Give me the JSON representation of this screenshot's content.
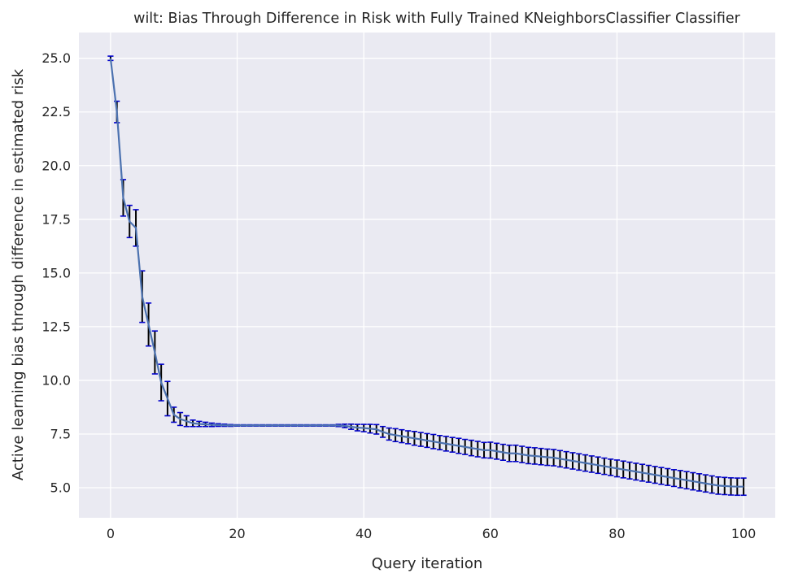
{
  "chart_data": {
    "type": "line",
    "title": "wilt: Bias Through Difference in Risk with Fully Trained KNeighborsClassifier Classifier",
    "xlabel": "Query iteration",
    "ylabel": "Active learning bias through difference in estimated risk",
    "xlim": [
      -5,
      105
    ],
    "ylim": [
      3.6,
      26.2
    ],
    "xticks": [
      0,
      20,
      40,
      60,
      80,
      100
    ],
    "yticks": [
      5.0,
      7.5,
      10.0,
      12.5,
      15.0,
      17.5,
      20.0,
      22.5,
      25.0
    ],
    "xtick_labels": [
      "0",
      "20",
      "40",
      "60",
      "80",
      "100"
    ],
    "ytick_labels": [
      "5.0",
      "7.5",
      "10.0",
      "12.5",
      "15.0",
      "17.5",
      "20.0",
      "22.5",
      "25.0"
    ],
    "grid": true,
    "colors": {
      "background": "#eaeaf2",
      "grid": "#ffffff",
      "line": "#4c72b0",
      "errorbar": "#000000",
      "cap": "#0000cc"
    },
    "series": [
      {
        "x": [
          0,
          1,
          2,
          3,
          4,
          5,
          6,
          7,
          8,
          9,
          10,
          11,
          12,
          13,
          14,
          15,
          16,
          17,
          18,
          19,
          20,
          21,
          22,
          23,
          24,
          25,
          26,
          27,
          28,
          29,
          30,
          31,
          32,
          33,
          34,
          35,
          36,
          37,
          38,
          39,
          40,
          41,
          42,
          43,
          44,
          45,
          46,
          47,
          48,
          49,
          50,
          51,
          52,
          53,
          54,
          55,
          56,
          57,
          58,
          59,
          60,
          61,
          62,
          63,
          64,
          65,
          66,
          67,
          68,
          69,
          70,
          71,
          72,
          73,
          74,
          75,
          76,
          77,
          78,
          79,
          80,
          81,
          82,
          83,
          84,
          85,
          86,
          87,
          88,
          89,
          90,
          91,
          92,
          93,
          94,
          95,
          96,
          97,
          98,
          99,
          100
        ],
        "y": [
          25.0,
          22.5,
          18.5,
          17.4,
          17.1,
          13.9,
          12.6,
          11.3,
          9.9,
          9.15,
          8.4,
          8.2,
          8.1,
          8.0,
          7.97,
          7.95,
          7.93,
          7.92,
          7.91,
          7.9,
          7.9,
          7.9,
          7.9,
          7.9,
          7.9,
          7.9,
          7.9,
          7.9,
          7.9,
          7.9,
          7.9,
          7.9,
          7.9,
          7.9,
          7.9,
          7.9,
          7.9,
          7.88,
          7.84,
          7.8,
          7.78,
          7.75,
          7.72,
          7.6,
          7.5,
          7.45,
          7.4,
          7.35,
          7.3,
          7.25,
          7.2,
          7.15,
          7.1,
          7.05,
          7.0,
          6.95,
          6.9,
          6.85,
          6.8,
          6.75,
          6.75,
          6.7,
          6.65,
          6.6,
          6.6,
          6.55,
          6.5,
          6.48,
          6.45,
          6.42,
          6.4,
          6.35,
          6.3,
          6.25,
          6.2,
          6.15,
          6.1,
          6.05,
          6.0,
          5.95,
          5.9,
          5.85,
          5.8,
          5.75,
          5.7,
          5.65,
          5.6,
          5.55,
          5.5,
          5.45,
          5.4,
          5.35,
          5.3,
          5.25,
          5.2,
          5.15,
          5.1,
          5.08,
          5.06,
          5.05,
          5.05
        ],
        "err": [
          0.1,
          0.5,
          0.85,
          0.75,
          0.85,
          1.2,
          1.0,
          1.0,
          0.85,
          0.8,
          0.35,
          0.3,
          0.25,
          0.15,
          0.12,
          0.1,
          0.08,
          0.06,
          0.05,
          0.04,
          0.03,
          0.03,
          0.03,
          0.03,
          0.03,
          0.03,
          0.03,
          0.03,
          0.03,
          0.03,
          0.03,
          0.03,
          0.03,
          0.03,
          0.03,
          0.03,
          0.05,
          0.08,
          0.12,
          0.15,
          0.17,
          0.2,
          0.22,
          0.25,
          0.28,
          0.3,
          0.3,
          0.3,
          0.32,
          0.32,
          0.32,
          0.33,
          0.33,
          0.34,
          0.34,
          0.35,
          0.35,
          0.36,
          0.36,
          0.36,
          0.37,
          0.37,
          0.37,
          0.38,
          0.38,
          0.38,
          0.38,
          0.38,
          0.38,
          0.38,
          0.38,
          0.38,
          0.38,
          0.38,
          0.38,
          0.38,
          0.38,
          0.38,
          0.38,
          0.38,
          0.39,
          0.39,
          0.39,
          0.39,
          0.39,
          0.39,
          0.39,
          0.39,
          0.39,
          0.39,
          0.4,
          0.4,
          0.4,
          0.4,
          0.4,
          0.4,
          0.4,
          0.4,
          0.4,
          0.4,
          0.4
        ]
      }
    ]
  }
}
